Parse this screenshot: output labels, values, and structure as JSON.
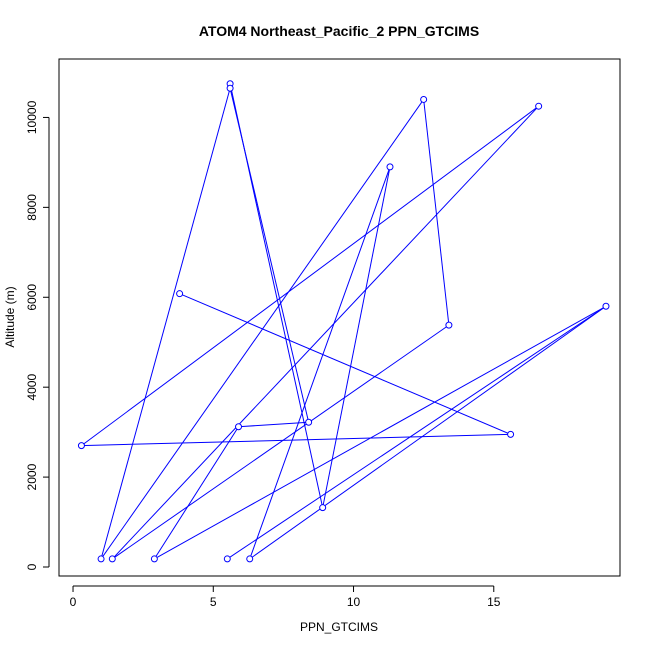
{
  "chart_data": {
    "type": "line",
    "title": "ATOM4 Northeast_Pacific_2 PPN_GTCIMS",
    "xlabel": "PPN_GTCIMS",
    "ylabel": "Altitude (m)",
    "xlim": [
      -0.5,
      19.5
    ],
    "ylim": [
      -200,
      11300
    ],
    "x_ticks": [
      0,
      5,
      10,
      15
    ],
    "x_tick_labels": [
      "0",
      "5",
      "10",
      "15"
    ],
    "y_ticks": [
      0,
      2000,
      4000,
      6000,
      8000,
      10000
    ],
    "y_tick_labels": [
      "0",
      "2000",
      "4000",
      "6000",
      "8000",
      "10000"
    ],
    "grid": false,
    "line_color": "#0000ff",
    "marker": "open-circle",
    "series": [
      {
        "x": [
          5.6,
          8.9,
          11.3,
          6.3,
          19.0,
          2.9,
          5.9,
          8.4,
          5.6,
          1.0,
          12.5,
          13.4,
          1.4,
          16.6,
          0.3,
          15.6,
          3.8
        ],
        "y": [
          10750,
          1320,
          8900,
          180,
          5800,
          180,
          3120,
          3220,
          10650,
          180,
          10400,
          5380,
          180,
          10250,
          2700,
          2950,
          6080
        ]
      }
    ],
    "extra_points": [
      {
        "x": 5.5,
        "y": 180
      }
    ],
    "extra_segments": [
      {
        "x": [
          5.5,
          19.0
        ],
        "y": [
          180,
          5800
        ]
      }
    ]
  }
}
